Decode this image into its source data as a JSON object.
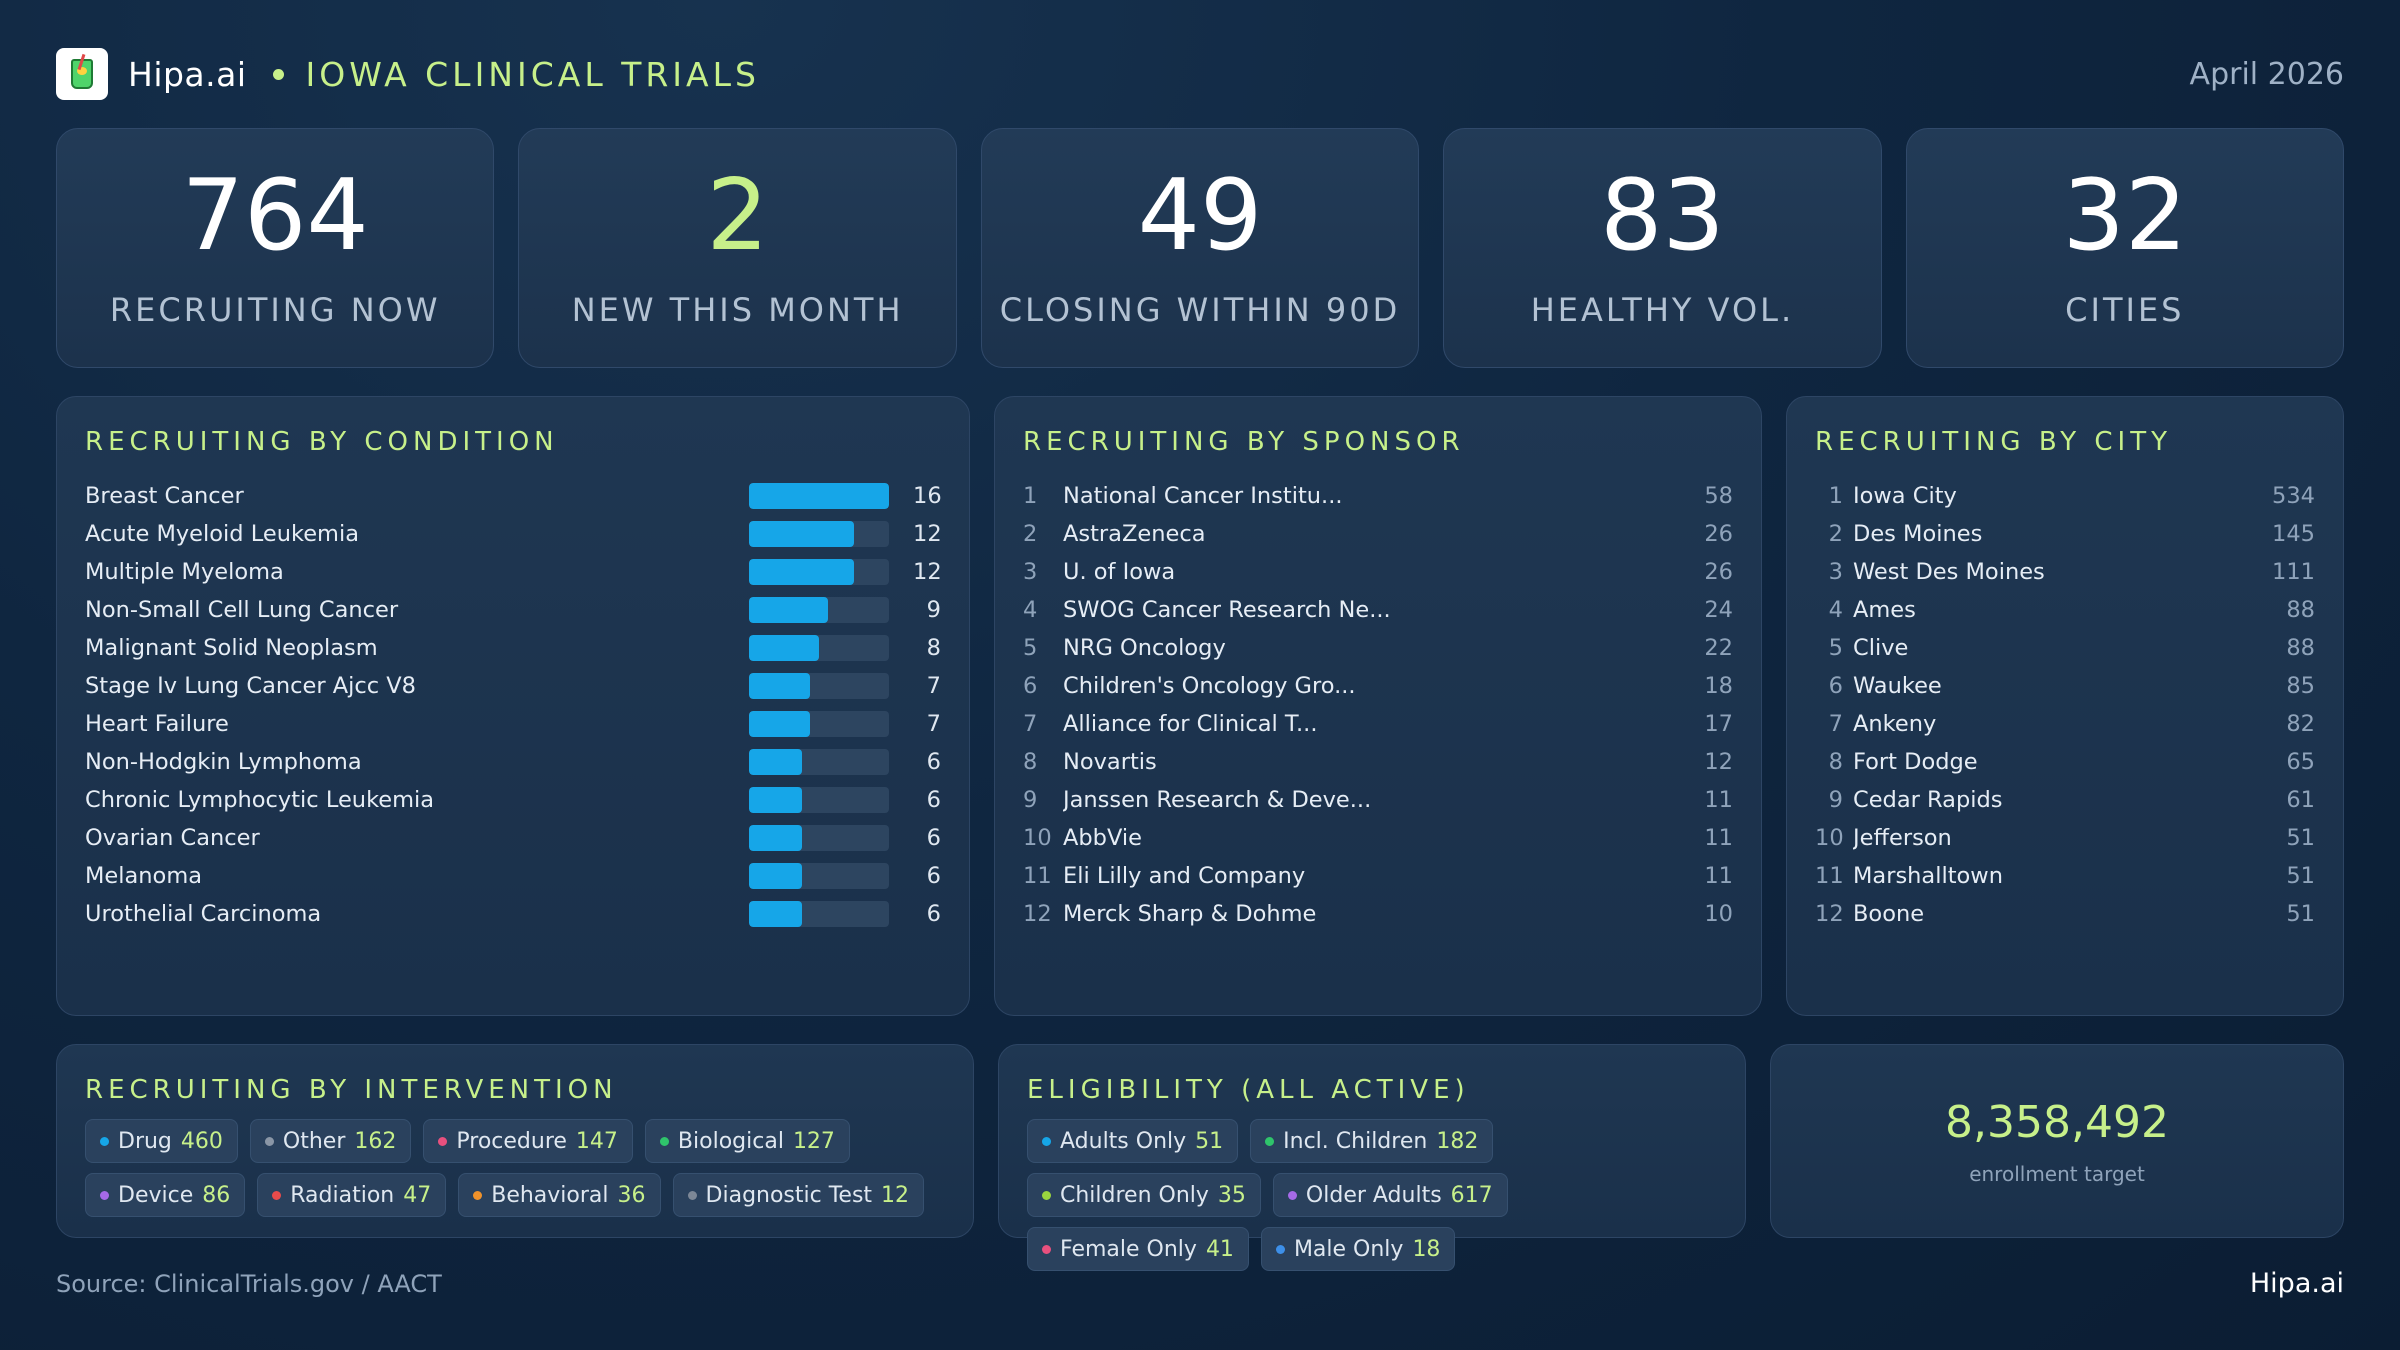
{
  "header": {
    "brand": "Hipa.ai",
    "title": "IOWA CLINICAL TRIALS",
    "date": "April 2026"
  },
  "kpis": [
    {
      "value": "764",
      "label": "RECRUITING NOW",
      "accent": false
    },
    {
      "value": "2",
      "label": "NEW THIS MONTH",
      "accent": true
    },
    {
      "value": "49",
      "label": "CLOSING WITHIN 90D",
      "accent": false
    },
    {
      "value": "83",
      "label": "HEALTHY VOL.",
      "accent": false
    },
    {
      "value": "32",
      "label": "CITIES",
      "accent": false
    }
  ],
  "by_condition": {
    "title": "RECRUITING BY CONDITION",
    "max": 16,
    "items": [
      {
        "name": "Breast Cancer",
        "count": 16
      },
      {
        "name": "Acute Myeloid Leukemia",
        "count": 12
      },
      {
        "name": "Multiple Myeloma",
        "count": 12
      },
      {
        "name": "Non-Small Cell Lung Cancer",
        "count": 9
      },
      {
        "name": "Malignant Solid Neoplasm",
        "count": 8
      },
      {
        "name": "Stage Iv Lung Cancer Ajcc V8",
        "count": 7
      },
      {
        "name": "Heart Failure",
        "count": 7
      },
      {
        "name": "Non-Hodgkin Lymphoma",
        "count": 6
      },
      {
        "name": "Chronic Lymphocytic Leukemia",
        "count": 6
      },
      {
        "name": "Ovarian Cancer",
        "count": 6
      },
      {
        "name": "Melanoma",
        "count": 6
      },
      {
        "name": "Urothelial Carcinoma",
        "count": 6
      }
    ]
  },
  "by_sponsor": {
    "title": "RECRUITING BY SPONSOR",
    "items": [
      {
        "rank": "1",
        "name": "National Cancer Institu...",
        "count": "58"
      },
      {
        "rank": "2",
        "name": "AstraZeneca",
        "count": "26"
      },
      {
        "rank": "3",
        "name": "U. of Iowa",
        "count": "26"
      },
      {
        "rank": "4",
        "name": "SWOG Cancer Research Ne...",
        "count": "24"
      },
      {
        "rank": "5",
        "name": "NRG Oncology",
        "count": "22"
      },
      {
        "rank": "6",
        "name": "Children's Oncology Gro...",
        "count": "18"
      },
      {
        "rank": "7",
        "name": "Alliance for Clinical T...",
        "count": "17"
      },
      {
        "rank": "8",
        "name": "Novartis",
        "count": "12"
      },
      {
        "rank": "9",
        "name": "Janssen Research & Deve...",
        "count": "11"
      },
      {
        "rank": "10",
        "name": "AbbVie",
        "count": "11"
      },
      {
        "rank": "11",
        "name": "Eli Lilly and Company",
        "count": "11"
      },
      {
        "rank": "12",
        "name": "Merck Sharp & Dohme",
        "count": "10"
      }
    ]
  },
  "by_city": {
    "title": "RECRUITING BY CITY",
    "items": [
      {
        "rank": "1",
        "name": "Iowa City",
        "count": "534"
      },
      {
        "rank": "2",
        "name": "Des Moines",
        "count": "145"
      },
      {
        "rank": "3",
        "name": "West Des Moines",
        "count": "111"
      },
      {
        "rank": "4",
        "name": "Ames",
        "count": "88"
      },
      {
        "rank": "5",
        "name": "Clive",
        "count": "88"
      },
      {
        "rank": "6",
        "name": "Waukee",
        "count": "85"
      },
      {
        "rank": "7",
        "name": "Ankeny",
        "count": "82"
      },
      {
        "rank": "8",
        "name": "Fort Dodge",
        "count": "65"
      },
      {
        "rank": "9",
        "name": "Cedar Rapids",
        "count": "61"
      },
      {
        "rank": "10",
        "name": "Jefferson",
        "count": "51"
      },
      {
        "rank": "11",
        "name": "Marshalltown",
        "count": "51"
      },
      {
        "rank": "12",
        "name": "Boone",
        "count": "51"
      }
    ]
  },
  "by_intervention": {
    "title": "RECRUITING BY INTERVENTION",
    "chips": [
      {
        "label": "Drug",
        "value": "460",
        "color": "#16a6e8"
      },
      {
        "label": "Other",
        "value": "162",
        "color": "#8a96a6"
      },
      {
        "label": "Procedure",
        "value": "147",
        "color": "#e8507e"
      },
      {
        "label": "Biological",
        "value": "127",
        "color": "#2fc46b"
      },
      {
        "label": "Device",
        "value": "86",
        "color": "#a66ae8"
      },
      {
        "label": "Radiation",
        "value": "47",
        "color": "#e84b4b"
      },
      {
        "label": "Behavioral",
        "value": "36",
        "color": "#f0922b"
      },
      {
        "label": "Diagnostic Test",
        "value": "12",
        "color": "#7d8796"
      }
    ]
  },
  "eligibility": {
    "title": "ELIGIBILITY (ALL ACTIVE)",
    "chips": [
      {
        "label": "Adults Only",
        "value": "51",
        "color": "#16a6e8"
      },
      {
        "label": "Incl. Children",
        "value": "182",
        "color": "#2fc46b"
      },
      {
        "label": "Children Only",
        "value": "35",
        "color": "#9ad43f"
      },
      {
        "label": "Older Adults",
        "value": "617",
        "color": "#a66ae8"
      },
      {
        "label": "Female Only",
        "value": "41",
        "color": "#e8507e"
      },
      {
        "label": "Male Only",
        "value": "18",
        "color": "#3d8fe8"
      }
    ]
  },
  "enrollment": {
    "value": "8,358,492",
    "label": "enrollment target"
  },
  "footer": {
    "source": "Source: ClinicalTrials.gov / AACT",
    "brand": "Hipa.ai"
  }
}
